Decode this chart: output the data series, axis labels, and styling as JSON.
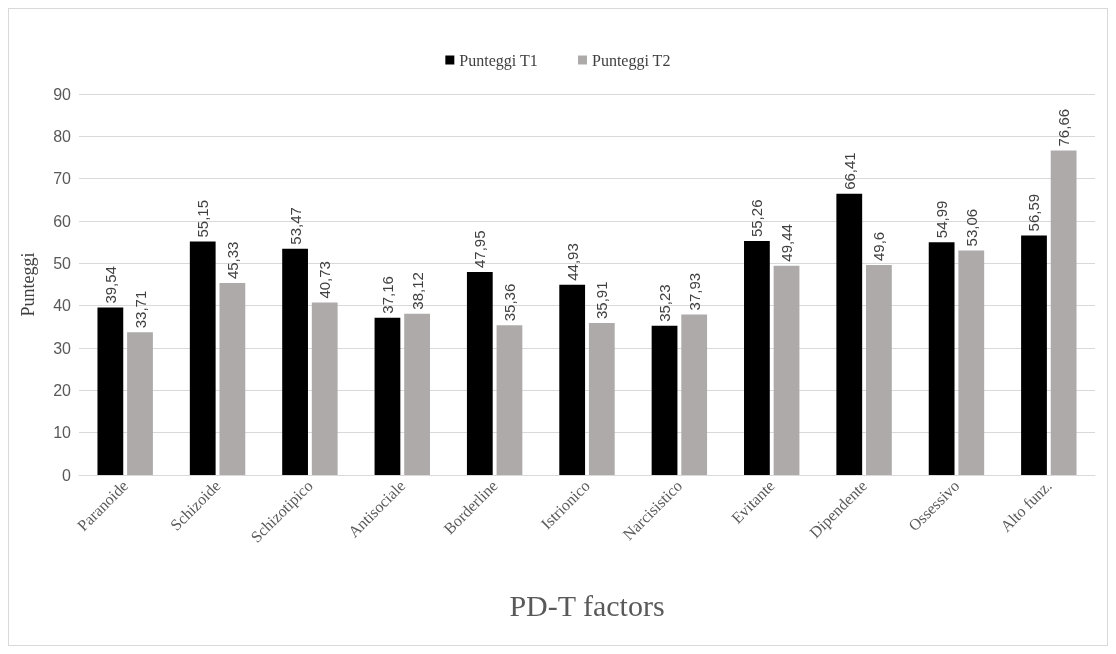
{
  "chart_data": {
    "type": "bar",
    "xlabel": "PD-T factors",
    "ylabel": "Punteggi",
    "categories": [
      "Paranoide",
      "Schizoide",
      "Schizotipico",
      "Antisociale",
      "Borderline",
      "Istrionico",
      "Narcisistico",
      "Evitante",
      "Dipendente",
      "Ossessivo",
      "Alto funz."
    ],
    "series": [
      {
        "name": "Punteggi T1",
        "color": "#000000",
        "values": [
          39.54,
          55.15,
          53.47,
          37.16,
          47.95,
          44.93,
          35.23,
          55.26,
          66.41,
          54.99,
          56.59
        ],
        "value_labels": [
          "39,54",
          "55,15",
          "53,47",
          "37,16",
          "47,95",
          "44,93",
          "35,23",
          "55,26",
          "66,41",
          "54,99",
          "56,59"
        ]
      },
      {
        "name": "Punteggi T2",
        "color": "#aeaaaa",
        "values": [
          33.71,
          45.33,
          40.73,
          38.12,
          35.36,
          35.91,
          37.93,
          49.44,
          49.6,
          53.06,
          76.66
        ],
        "value_labels": [
          "33,71",
          "45,33",
          "40,73",
          "38,12",
          "35,36",
          "35,91",
          "37,93",
          "49,44",
          "49,6",
          "53,06",
          "76,66"
        ]
      }
    ],
    "ylim": [
      0,
      90
    ],
    "yticks": [
      0,
      10,
      20,
      30,
      40,
      50,
      60,
      70,
      80,
      90
    ],
    "grid": "y",
    "legend": "top"
  }
}
